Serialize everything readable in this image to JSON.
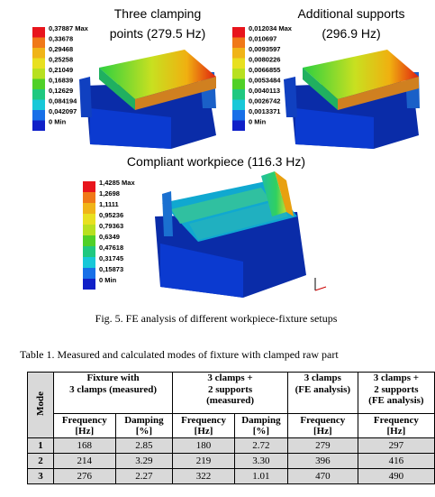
{
  "figure": {
    "panels": [
      {
        "title": [
          "Three clamping",
          "points (279.5 Hz)"
        ],
        "legend": [
          "0,37887 Max",
          "0,33678",
          "0,29468",
          "0,25258",
          "0,21049",
          "0,16839",
          "0,12629",
          "0,084194",
          "0,042097",
          "0 Min"
        ]
      },
      {
        "title": [
          "Additional supports",
          "(296.9 Hz)"
        ],
        "legend": [
          "0,012034 Max",
          "0,010697",
          "0,0093597",
          "0,0080226",
          "0,0066855",
          "0,0053484",
          "0,0040113",
          "0,0026742",
          "0,0013371",
          "0 Min"
        ]
      },
      {
        "title": [
          "Compliant workpiece (116.3 Hz)"
        ],
        "legend": [
          "1,4285 Max",
          "1,2698",
          "1,1111",
          "0,95236",
          "0,79363",
          "0,6349",
          "0,47618",
          "0,31745",
          "0,15873",
          "0 Min"
        ]
      }
    ],
    "caption": "Fig. 5. FE analysis of different workpiece-fixture setups"
  },
  "table": {
    "caption": "Table 1. Measured and calculated modes of fixture with clamped raw part",
    "mode_header": "Mode",
    "group_headers": [
      [
        "Fixture with",
        "3 clamps (measured)"
      ],
      [
        "3 clamps +",
        "2 supports",
        "(measured)"
      ],
      [
        "3 clamps",
        "(FE analysis)"
      ],
      [
        "3 clamps +",
        "2 supports",
        "(FE analysis)"
      ]
    ],
    "sub_headers": [
      [
        "Frequency",
        "[Hz]"
      ],
      [
        "Damping",
        "[%]"
      ],
      [
        "Frequency",
        "[Hz]"
      ],
      [
        "Damping",
        "[%]"
      ],
      [
        "Frequency",
        "[Hz]"
      ],
      [
        "Frequency",
        "[Hz]"
      ]
    ],
    "rows": [
      [
        "1",
        "168",
        "2.85",
        "180",
        "2.72",
        "279",
        "297"
      ],
      [
        "2",
        "214",
        "3.29",
        "219",
        "3.30",
        "396",
        "416"
      ],
      [
        "3",
        "276",
        "2.27",
        "322",
        "1.01",
        "470",
        "490"
      ]
    ]
  }
}
